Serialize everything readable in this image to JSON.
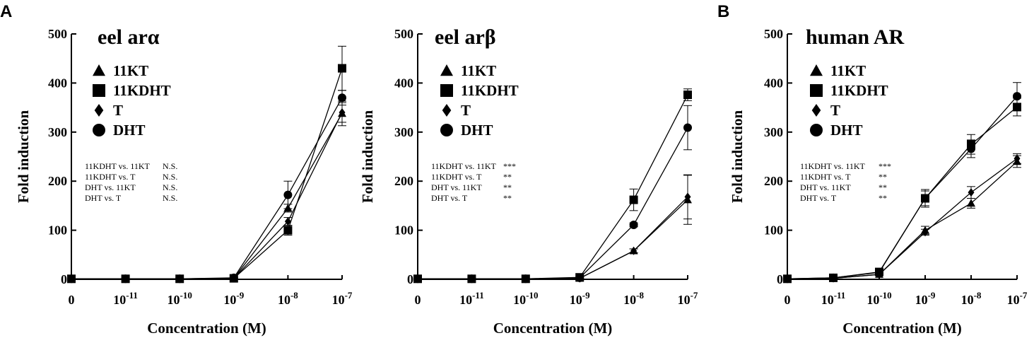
{
  "panel_letters": [
    "A",
    "B"
  ],
  "stat_lines_count_note": "",
  "chart_data": [
    {
      "type": "line",
      "title": "eel arα",
      "xlabel": "Concentration (M)",
      "ylabel": "Fold induction",
      "ylim": [
        0,
        500
      ],
      "yticks": [
        "0",
        "100",
        "200",
        "300",
        "400",
        "500"
      ],
      "x_tick_labels": [
        {
          "base": "0",
          "exp": ""
        },
        {
          "base": "10",
          "exp": "-11"
        },
        {
          "base": "10",
          "exp": "-10"
        },
        {
          "base": "10",
          "exp": "-9"
        },
        {
          "base": "10",
          "exp": "-8"
        },
        {
          "base": "10",
          "exp": "-7"
        }
      ],
      "x": [
        "0",
        "1e-11",
        "1e-10",
        "1e-9",
        "1e-8",
        "1e-7"
      ],
      "legend_position": "top-left",
      "series": [
        {
          "name": "11KT",
          "marker": "triangle",
          "values": [
            1,
            1,
            1,
            2,
            145,
            338
          ],
          "errors": [
            0,
            0,
            0,
            0,
            8,
            25
          ]
        },
        {
          "name": "11KDHT",
          "marker": "square",
          "values": [
            1,
            1,
            1,
            2,
            100,
            430
          ],
          "errors": [
            0,
            0,
            0,
            0,
            10,
            45
          ]
        },
        {
          "name": "T",
          "marker": "diamond",
          "values": [
            1,
            1,
            1,
            2,
            118,
            340
          ],
          "errors": [
            0,
            0,
            0,
            0,
            8,
            20
          ]
        },
        {
          "name": "DHT",
          "marker": "circle",
          "values": [
            1,
            1,
            1,
            3,
            172,
            370
          ],
          "errors": [
            0,
            0,
            0,
            0,
            28,
            15
          ]
        }
      ],
      "stats": [
        {
          "label": "11KDHT vs. 11KT",
          "sig": "N.S."
        },
        {
          "label": "11KDHT vs. T",
          "sig": "N.S."
        },
        {
          "label": "DHT vs. 11KT",
          "sig": "N.S."
        },
        {
          "label": "DHT vs. T",
          "sig": "N.S."
        }
      ]
    },
    {
      "type": "line",
      "title": "eel arβ",
      "xlabel": "Concentration  (M)",
      "ylabel": "Fold induction",
      "ylim": [
        0,
        500
      ],
      "yticks": [
        "0",
        "100",
        "200",
        "300",
        "400",
        "500"
      ],
      "x_tick_labels": [
        {
          "base": "0",
          "exp": ""
        },
        {
          "base": "10",
          "exp": "-11"
        },
        {
          "base": "10",
          "exp": "-10"
        },
        {
          "base": "10",
          "exp": "-9"
        },
        {
          "base": "10",
          "exp": "-8"
        },
        {
          "base": "10",
          "exp": "-7"
        }
      ],
      "x": [
        "0",
        "1e-11",
        "1e-10",
        "1e-9",
        "1e-8",
        "1e-7"
      ],
      "legend_position": "top-left",
      "series": [
        {
          "name": "11KT",
          "marker": "triangle",
          "values": [
            1,
            1,
            1,
            2,
            58,
            162
          ],
          "errors": [
            0,
            0,
            0,
            0,
            4,
            50
          ]
        },
        {
          "name": "11KDHT",
          "marker": "square",
          "values": [
            1,
            1,
            1,
            4,
            162,
            376
          ],
          "errors": [
            0,
            0,
            0,
            0,
            22,
            12
          ]
        },
        {
          "name": "T",
          "marker": "diamond",
          "values": [
            1,
            1,
            1,
            2,
            58,
            168
          ],
          "errors": [
            0,
            0,
            0,
            0,
            4,
            45
          ]
        },
        {
          "name": "DHT",
          "marker": "circle",
          "values": [
            1,
            1,
            1,
            3,
            111,
            309
          ],
          "errors": [
            0,
            0,
            0,
            0,
            4,
            45
          ]
        }
      ],
      "stats": [
        {
          "label": "11KDHT vs. 11KT",
          "sig": "***"
        },
        {
          "label": "11KDHT vs. T",
          "sig": "**"
        },
        {
          "label": "DHT vs. 11KT",
          "sig": "**"
        },
        {
          "label": "DHT vs. T",
          "sig": "**"
        }
      ]
    },
    {
      "type": "line",
      "title": "human AR",
      "xlabel": "Concentration  (M)",
      "ylabel": "Fold induction",
      "ylim": [
        0,
        500
      ],
      "yticks": [
        "0",
        "100",
        "200",
        "300",
        "400",
        "500"
      ],
      "x_tick_labels": [
        {
          "base": "0",
          "exp": ""
        },
        {
          "base": "10",
          "exp": "-11"
        },
        {
          "base": "10",
          "exp": "-10"
        },
        {
          "base": "10",
          "exp": "-9"
        },
        {
          "base": "10",
          "exp": "-8"
        },
        {
          "base": "10",
          "exp": "-7"
        }
      ],
      "x": [
        "0",
        "1e-11",
        "1e-10",
        "1e-9",
        "1e-8",
        "1e-7"
      ],
      "legend_position": "top-left",
      "series": [
        {
          "name": "11KT",
          "marker": "triangle",
          "values": [
            1,
            2,
            10,
            100,
            155,
            240
          ],
          "errors": [
            0,
            0,
            2,
            8,
            10,
            12
          ]
        },
        {
          "name": "11KDHT",
          "marker": "square",
          "values": [
            1,
            3,
            15,
            165,
            275,
            351
          ],
          "errors": [
            0,
            0,
            3,
            15,
            20,
            18
          ]
        },
        {
          "name": "T",
          "marker": "diamond",
          "values": [
            1,
            2,
            10,
            96,
            177,
            246
          ],
          "errors": [
            0,
            0,
            2,
            6,
            12,
            10
          ]
        },
        {
          "name": "DHT",
          "marker": "circle",
          "values": [
            1,
            3,
            14,
            165,
            266,
            373
          ],
          "errors": [
            0,
            0,
            3,
            18,
            18,
            28
          ]
        }
      ],
      "stats": [
        {
          "label": "11KDHT vs. 11KT",
          "sig": "***"
        },
        {
          "label": "11KDHT vs. T",
          "sig": "**"
        },
        {
          "label": "DHT vs. 11KT",
          "sig": "**"
        },
        {
          "label": "DHT vs. T",
          "sig": "**"
        }
      ]
    }
  ]
}
